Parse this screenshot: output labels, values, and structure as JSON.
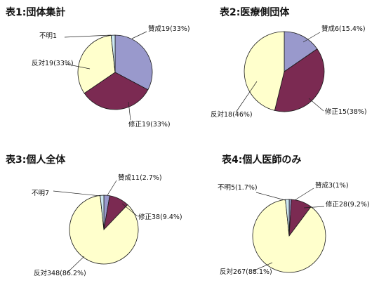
{
  "chart_data": [
    {
      "type": "pie",
      "title": "表1:団体集計",
      "slices": [
        {
          "label": "賛成19(33%)",
          "value": 19,
          "color": "#9999cc"
        },
        {
          "label": "修正19(33%)",
          "value": 19,
          "color": "#7b2a52"
        },
        {
          "label": "反対19(33%)",
          "value": 19,
          "color": "#ffffcc"
        },
        {
          "label": "不明1",
          "value": 1,
          "color": "#cde8f2"
        }
      ]
    },
    {
      "type": "pie",
      "title": "表2:医療側団体",
      "slices": [
        {
          "label": "賛成6(15.4%)",
          "value": 6,
          "color": "#9999cc"
        },
        {
          "label": "修正15(38%)",
          "value": 15,
          "color": "#7b2a52"
        },
        {
          "label": "反対18(46%)",
          "value": 18,
          "color": "#ffffcc"
        }
      ]
    },
    {
      "type": "pie",
      "title": "表3:個人全体",
      "slices": [
        {
          "label": "賛成11(2.7%)",
          "value": 11,
          "color": "#9999cc"
        },
        {
          "label": "修正38(9.4%)",
          "value": 38,
          "color": "#7b2a52"
        },
        {
          "label": "反対348(86.2%)",
          "value": 348,
          "color": "#ffffcc"
        },
        {
          "label": "不明7",
          "value": 7,
          "color": "#cde8f2"
        }
      ]
    },
    {
      "type": "pie",
      "title": "表4:個人医師のみ",
      "slices": [
        {
          "label": "賛成3(1%)",
          "value": 3,
          "color": "#9999cc"
        },
        {
          "label": "修正28(9.2%)",
          "value": 28,
          "color": "#7b2a52"
        },
        {
          "label": "反対267(88.1%)",
          "value": 267,
          "color": "#ffffcc"
        },
        {
          "label": "不明5(1.7%)",
          "value": 5,
          "color": "#cde8f2"
        }
      ]
    }
  ]
}
